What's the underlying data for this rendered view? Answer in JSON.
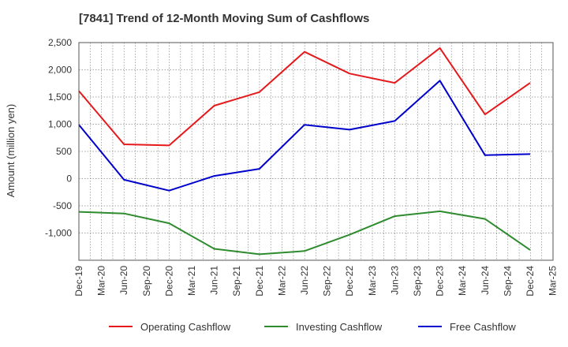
{
  "chart_data": {
    "type": "line",
    "title": "[7841]  Trend of 12-Month Moving Sum of Cashflows",
    "xlabel": "",
    "ylabel": "Amount (million yen)",
    "ylim": [
      -1500,
      2500
    ],
    "yticks": [
      2500,
      2000,
      1500,
      1000,
      500,
      0,
      -500,
      -1000
    ],
    "ytick_labels": [
      "2,500",
      "2,000",
      "1,500",
      "1,000",
      "500",
      "0",
      "-500",
      "-1,000"
    ],
    "x_tick_labels": [
      "Dec-19",
      "Mar-20",
      "Jun-20",
      "Sep-20",
      "Dec-20",
      "Mar-21",
      "Jun-21",
      "Sep-21",
      "Dec-21",
      "Mar-22",
      "Jun-22",
      "Sep-22",
      "Dec-22",
      "Mar-23",
      "Jun-23",
      "Sep-23",
      "Dec-23",
      "Mar-24",
      "Jun-24",
      "Sep-24",
      "Dec-24",
      "Mar-25"
    ],
    "x": [
      "Dec-19",
      "Jun-20",
      "Dec-20",
      "Jun-21",
      "Dec-21",
      "Jun-22",
      "Dec-22",
      "Jun-23",
      "Dec-23",
      "Jun-24",
      "Dec-24"
    ],
    "grid": true,
    "legend_position": "bottom",
    "series": [
      {
        "name": "Operating Cashflow",
        "color": "#e41a1c",
        "values": [
          1610,
          630,
          610,
          1340,
          1590,
          2330,
          1930,
          1760,
          2400,
          1180,
          1760
        ]
      },
      {
        "name": "Investing Cashflow",
        "color": "#2e8b2e",
        "values": [
          -610,
          -640,
          -820,
          -1290,
          -1390,
          -1330,
          -1030,
          -690,
          -600,
          -740,
          -1310
        ]
      },
      {
        "name": "Free Cashflow",
        "color": "#0000cc",
        "values": [
          990,
          -20,
          -220,
          50,
          180,
          990,
          900,
          1060,
          1800,
          430,
          450
        ]
      }
    ]
  }
}
